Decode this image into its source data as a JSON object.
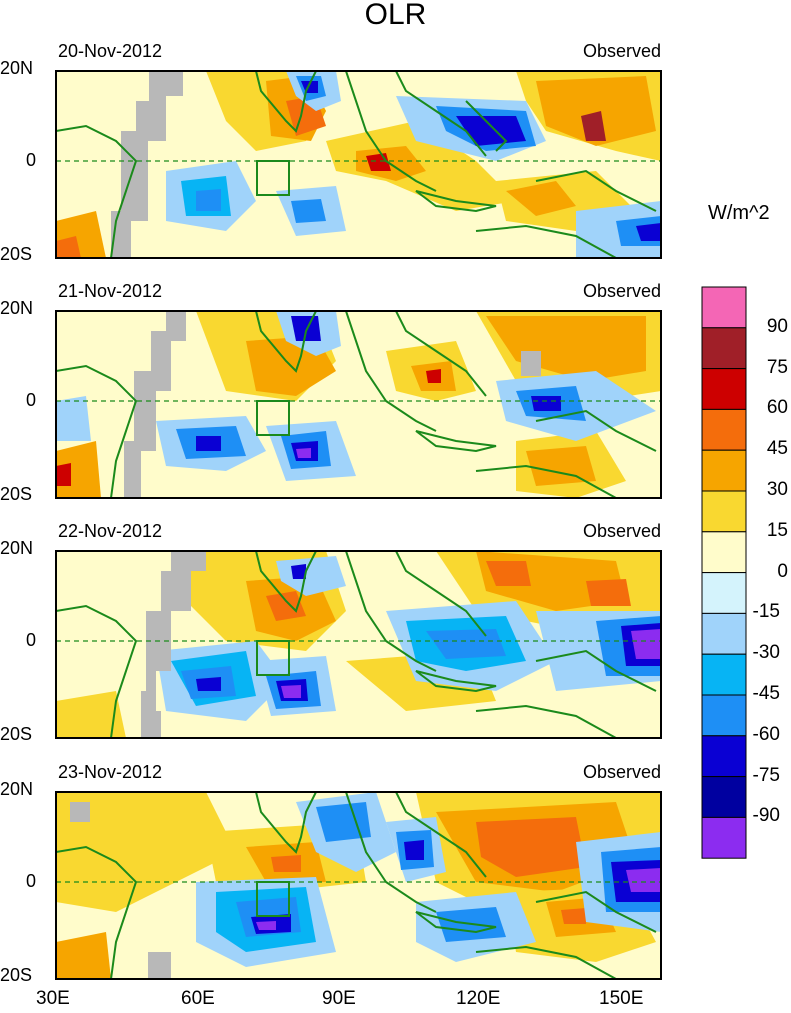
{
  "title": "OLR",
  "units": "W/m^2",
  "panels": [
    {
      "date": "20-Nov-2012",
      "label": "Observed"
    },
    {
      "date": "21-Nov-2012",
      "label": "Observed"
    },
    {
      "date": "22-Nov-2012",
      "label": "Observed"
    },
    {
      "date": "23-Nov-2012",
      "label": "Observed"
    }
  ],
  "lat_labels": [
    "20N",
    "0",
    "20S"
  ],
  "lon_labels": [
    "30E",
    "60E",
    "90E",
    "120E",
    "150E"
  ],
  "colorbar": {
    "levels": [
      "90",
      "75",
      "60",
      "45",
      "30",
      "15",
      "0",
      "-15",
      "-30",
      "-45",
      "-60",
      "-75",
      "-90"
    ],
    "colors": [
      "#f466b5",
      "#a01f28",
      "#cd0000",
      "#f46d0c",
      "#f6a500",
      "#f9d830",
      "#fffccb",
      "#d4f3fc",
      "#a0d3fa",
      "#07b4f4",
      "#1e8ff5",
      "#0a00d3",
      "#0000a0",
      "#8c2cf0"
    ]
  },
  "box_region": "75E-80E, 0-10S"
}
